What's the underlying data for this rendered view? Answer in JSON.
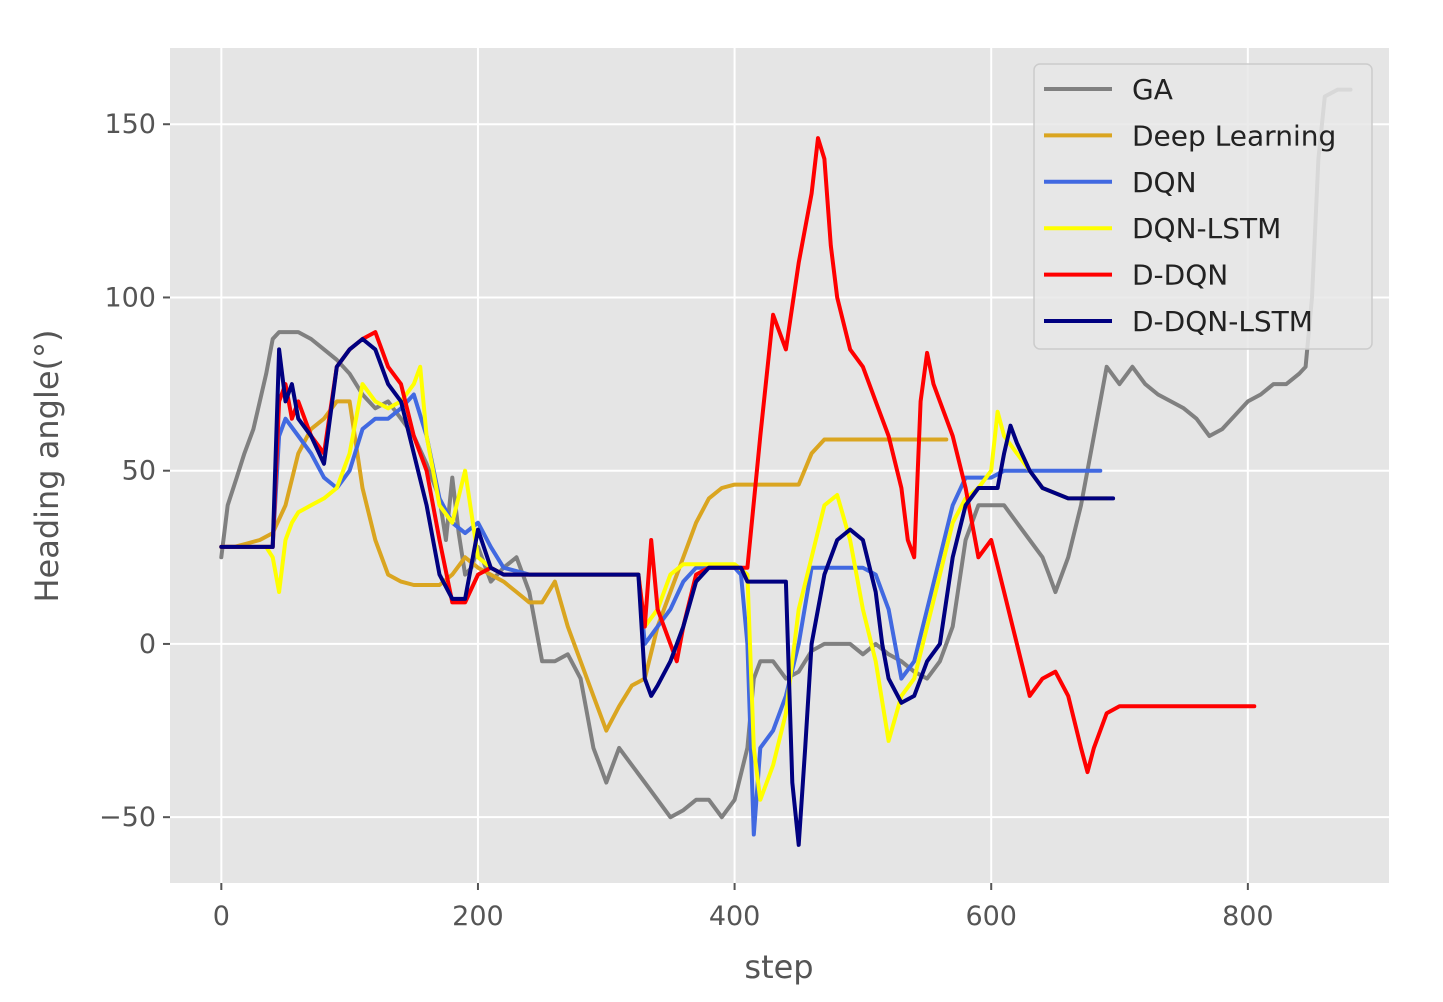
{
  "chart_data": {
    "type": "line",
    "title": "",
    "xlabel": "step",
    "ylabel": "Heading angle(°)",
    "xlim": [
      -40,
      910
    ],
    "ylim": [
      -69,
      172
    ],
    "xticks": [
      0,
      200,
      400,
      600,
      800
    ],
    "yticks": [
      -50,
      0,
      50,
      100,
      150
    ],
    "xtick_labels": [
      "0",
      "200",
      "400",
      "600",
      "800"
    ],
    "ytick_labels": [
      "−50",
      "0",
      "50",
      "100",
      "150"
    ],
    "grid": true,
    "legend_position": "upper right",
    "background": "#e5e5e5",
    "series": [
      {
        "name": "GA",
        "color": "#808080",
        "x": [
          0,
          5,
          12,
          18,
          25,
          30,
          35,
          40,
          45,
          50,
          60,
          70,
          80,
          90,
          100,
          110,
          120,
          130,
          140,
          150,
          160,
          170,
          175,
          180,
          185,
          190,
          195,
          200,
          210,
          220,
          230,
          240,
          250,
          260,
          270,
          280,
          285,
          290,
          295,
          300,
          310,
          320,
          330,
          340,
          350,
          360,
          370,
          380,
          390,
          400,
          410,
          415,
          420,
          430,
          440,
          450,
          460,
          470,
          480,
          490,
          500,
          510,
          520,
          530,
          540,
          550,
          560,
          570,
          580,
          590,
          600,
          610,
          620,
          630,
          640,
          645,
          650,
          660,
          670,
          680,
          690,
          700,
          710,
          720,
          730,
          740,
          750,
          760,
          770,
          780,
          790,
          800,
          810,
          820,
          830,
          840,
          845,
          850,
          855,
          860,
          870,
          880
        ],
        "values": [
          25,
          40,
          48,
          55,
          62,
          70,
          78,
          88,
          90,
          90,
          90,
          88,
          85,
          82,
          78,
          72,
          68,
          70,
          65,
          60,
          52,
          42,
          30,
          48,
          32,
          20,
          22,
          28,
          18,
          22,
          25,
          15,
          -5,
          -5,
          -3,
          -10,
          -20,
          -30,
          -35,
          -40,
          -30,
          -35,
          -40,
          -45,
          -50,
          -48,
          -45,
          -45,
          -50,
          -45,
          -30,
          -10,
          -5,
          -5,
          -10,
          -8,
          -2,
          0,
          0,
          0,
          -3,
          0,
          -3,
          -5,
          -8,
          -10,
          -5,
          5,
          30,
          40,
          40,
          40,
          35,
          30,
          25,
          20,
          15,
          25,
          40,
          60,
          80,
          75,
          80,
          75,
          72,
          70,
          68,
          65,
          60,
          62,
          66,
          70,
          72,
          75,
          75,
          78,
          80,
          100,
          140,
          158,
          160,
          160
        ]
      },
      {
        "name": "Deep Learning",
        "color": "#daa520",
        "x": [
          0,
          10,
          20,
          30,
          40,
          50,
          60,
          70,
          80,
          90,
          100,
          110,
          120,
          130,
          140,
          150,
          160,
          170,
          180,
          190,
          200,
          210,
          220,
          230,
          240,
          250,
          260,
          270,
          280,
          290,
          300,
          310,
          320,
          330,
          340,
          350,
          360,
          370,
          380,
          390,
          400,
          410,
          420,
          440,
          450,
          460,
          470,
          480,
          490,
          500,
          520,
          540,
          560,
          565
        ],
        "values": [
          28,
          28,
          29,
          30,
          32,
          40,
          55,
          62,
          65,
          70,
          70,
          45,
          30,
          20,
          18,
          17,
          17,
          17,
          20,
          25,
          22,
          20,
          18,
          15,
          12,
          12,
          18,
          5,
          -5,
          -15,
          -25,
          -18,
          -12,
          -10,
          5,
          15,
          25,
          35,
          42,
          45,
          46,
          46,
          46,
          46,
          46,
          55,
          59,
          59,
          59,
          59,
          59,
          59,
          59,
          59
        ]
      },
      {
        "name": "DQN",
        "color": "#4169e1",
        "x": [
          0,
          20,
          35,
          40,
          45,
          50,
          60,
          70,
          80,
          90,
          100,
          110,
          120,
          130,
          140,
          150,
          160,
          170,
          180,
          190,
          200,
          210,
          220,
          240,
          260,
          280,
          300,
          320,
          325,
          330,
          340,
          350,
          360,
          370,
          380,
          390,
          400,
          405,
          410,
          415,
          420,
          430,
          440,
          450,
          460,
          470,
          480,
          490,
          500,
          510,
          520,
          530,
          540,
          550,
          560,
          570,
          580,
          590,
          600,
          610,
          620,
          630,
          640,
          660,
          680,
          685
        ],
        "values": [
          28,
          28,
          28,
          28,
          60,
          65,
          60,
          55,
          48,
          45,
          50,
          62,
          65,
          65,
          68,
          72,
          60,
          42,
          35,
          32,
          35,
          28,
          22,
          20,
          20,
          20,
          20,
          20,
          20,
          0,
          5,
          10,
          18,
          22,
          22,
          22,
          22,
          20,
          0,
          -55,
          -30,
          -25,
          -15,
          0,
          22,
          22,
          22,
          22,
          22,
          20,
          10,
          -10,
          -5,
          10,
          25,
          40,
          48,
          48,
          48,
          50,
          50,
          50,
          50,
          50,
          50,
          50
        ]
      },
      {
        "name": "DQN-LSTM",
        "color": "#ffff00",
        "x": [
          0,
          20,
          35,
          40,
          45,
          50,
          55,
          60,
          70,
          80,
          90,
          100,
          110,
          120,
          130,
          140,
          150,
          155,
          160,
          170,
          180,
          190,
          200,
          210,
          220,
          240,
          260,
          280,
          300,
          320,
          325,
          330,
          340,
          350,
          360,
          370,
          380,
          390,
          400,
          410,
          415,
          420,
          430,
          440,
          450,
          460,
          470,
          480,
          490,
          500,
          510,
          520,
          530,
          540,
          550,
          560,
          570,
          580,
          590,
          600,
          605,
          610,
          620,
          630,
          640,
          660,
          680,
          690
        ],
        "values": [
          28,
          28,
          28,
          25,
          15,
          30,
          35,
          38,
          40,
          42,
          45,
          55,
          75,
          70,
          68,
          70,
          75,
          80,
          60,
          40,
          35,
          50,
          25,
          22,
          20,
          20,
          20,
          20,
          20,
          20,
          20,
          5,
          10,
          20,
          23,
          23,
          23,
          23,
          23,
          20,
          -30,
          -45,
          -35,
          -20,
          10,
          25,
          40,
          43,
          30,
          10,
          -5,
          -28,
          -15,
          -10,
          5,
          20,
          35,
          42,
          45,
          50,
          67,
          60,
          55,
          50,
          45,
          42,
          42,
          42
        ]
      },
      {
        "name": "D-DQN",
        "color": "#ff0000",
        "x": [
          0,
          20,
          35,
          40,
          45,
          50,
          55,
          60,
          70,
          80,
          90,
          100,
          110,
          120,
          130,
          140,
          150,
          160,
          170,
          180,
          190,
          200,
          210,
          220,
          240,
          260,
          280,
          300,
          320,
          325,
          330,
          335,
          340,
          350,
          355,
          360,
          370,
          380,
          390,
          400,
          410,
          420,
          430,
          440,
          450,
          460,
          465,
          470,
          475,
          480,
          490,
          500,
          510,
          520,
          530,
          535,
          540,
          545,
          550,
          555,
          560,
          565,
          570,
          580,
          590,
          600,
          610,
          620,
          630,
          640,
          650,
          660,
          670,
          675,
          680,
          690,
          700,
          720,
          740,
          760,
          780,
          800,
          805
        ],
        "values": [
          28,
          28,
          28,
          28,
          70,
          75,
          65,
          70,
          60,
          55,
          80,
          85,
          88,
          90,
          80,
          75,
          60,
          50,
          30,
          12,
          12,
          20,
          22,
          20,
          20,
          20,
          20,
          20,
          20,
          20,
          5,
          30,
          10,
          0,
          -5,
          5,
          20,
          22,
          22,
          22,
          22,
          60,
          95,
          85,
          110,
          130,
          146,
          140,
          115,
          100,
          85,
          80,
          70,
          60,
          45,
          30,
          25,
          70,
          84,
          75,
          70,
          65,
          60,
          45,
          25,
          30,
          15,
          0,
          -15,
          -10,
          -8,
          -15,
          -30,
          -37,
          -30,
          -20,
          -18,
          -18,
          -18,
          -18,
          -18,
          -18,
          -18
        ]
      },
      {
        "name": "D-DQN-LSTM",
        "color": "#000080",
        "x": [
          0,
          20,
          35,
          40,
          45,
          50,
          55,
          60,
          70,
          80,
          90,
          100,
          110,
          120,
          130,
          140,
          150,
          160,
          170,
          180,
          190,
          200,
          210,
          220,
          240,
          260,
          280,
          300,
          320,
          325,
          330,
          335,
          340,
          350,
          360,
          370,
          380,
          390,
          400,
          405,
          410,
          415,
          420,
          430,
          440,
          445,
          450,
          455,
          460,
          470,
          480,
          490,
          500,
          510,
          515,
          520,
          530,
          540,
          550,
          560,
          570,
          580,
          590,
          600,
          605,
          610,
          615,
          620,
          630,
          640,
          660,
          680,
          690,
          695
        ],
        "values": [
          28,
          28,
          28,
          28,
          85,
          70,
          75,
          65,
          60,
          52,
          80,
          85,
          88,
          85,
          75,
          70,
          55,
          40,
          20,
          13,
          13,
          33,
          22,
          20,
          20,
          20,
          20,
          20,
          20,
          20,
          -10,
          -15,
          -12,
          -5,
          5,
          18,
          22,
          22,
          22,
          22,
          18,
          18,
          18,
          18,
          18,
          -40,
          -58,
          -30,
          0,
          20,
          30,
          33,
          30,
          15,
          0,
          -10,
          -17,
          -15,
          -5,
          0,
          25,
          40,
          45,
          45,
          45,
          55,
          63,
          58,
          50,
          45,
          42,
          42,
          42,
          42
        ]
      }
    ]
  }
}
